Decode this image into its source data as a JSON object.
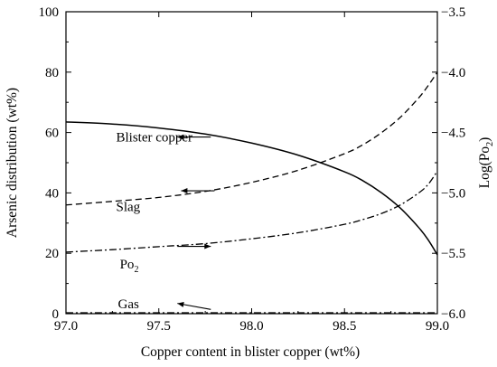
{
  "chart_data": {
    "type": "line",
    "title": "",
    "xlabel": "Copper content in blister copper (wt%)",
    "ylabel": "Arsenic distribution (wt%)",
    "y2label": {
      "prefix": "Log(Po",
      "sub": "2",
      "suffix": ")"
    },
    "xlim": [
      97.0,
      99.0
    ],
    "ylim": [
      0,
      100
    ],
    "y2lim": [
      -6.0,
      -3.5
    ],
    "xticks": [
      "97.0",
      "97.5",
      "98.0",
      "98.5",
      "99.0"
    ],
    "yticks": [
      "0",
      "20",
      "40",
      "60",
      "80",
      "100"
    ],
    "y2ticks": [
      "−6.0",
      "−5.5",
      "−5.0",
      "−4.5",
      "−4.0",
      "−3.5"
    ],
    "grid": false,
    "series": [
      {
        "name": "Blister copper",
        "axis": "left",
        "style": "solid",
        "x": [
          97.0,
          97.25,
          97.5,
          97.75,
          98.0,
          98.25,
          98.5,
          98.6,
          98.7,
          98.8,
          98.9,
          98.95,
          99.0
        ],
        "y": [
          63.5,
          62.8,
          61.5,
          59.5,
          56.5,
          52.5,
          47.0,
          44.0,
          40.0,
          35.0,
          28.5,
          24.5,
          19.5
        ]
      },
      {
        "name": "Slag",
        "axis": "left",
        "style": "dashed",
        "x": [
          97.0,
          97.25,
          97.5,
          97.75,
          98.0,
          98.25,
          98.5,
          98.6,
          98.7,
          98.8,
          98.9,
          98.95,
          99.0
        ],
        "y": [
          36.0,
          37.2,
          38.5,
          40.5,
          43.5,
          47.5,
          53.0,
          56.0,
          60.0,
          65.0,
          71.5,
          75.5,
          80.0
        ]
      },
      {
        "name": "Po2",
        "axis": "right",
        "style": "dash-dot",
        "x": [
          97.0,
          97.25,
          97.5,
          97.75,
          98.0,
          98.25,
          98.5,
          98.6,
          98.7,
          98.8,
          98.9,
          98.95,
          99.0
        ],
        "y": [
          -5.49,
          -5.47,
          -5.445,
          -5.42,
          -5.38,
          -5.33,
          -5.26,
          -5.22,
          -5.17,
          -5.1,
          -5.0,
          -4.93,
          -4.82
        ]
      },
      {
        "name": "Gas",
        "axis": "left",
        "style": "dash-dot",
        "x": [
          97.0,
          97.5,
          98.0,
          98.5,
          99.0
        ],
        "y": [
          0.2,
          0.2,
          0.2,
          0.2,
          0.2
        ]
      }
    ],
    "annotations": [
      {
        "id": "blister",
        "text": "Blister copper",
        "sub": "",
        "x": 97.27,
        "y": 58.5,
        "arrow_to": "left",
        "arrow_from": [
          97.78,
          58.5
        ],
        "arrow_tip": [
          97.6,
          58.5
        ]
      },
      {
        "id": "slag",
        "text": "Slag",
        "sub": "",
        "x": 97.27,
        "y": 35.5,
        "arrow_to": "left",
        "arrow_from": [
          97.8,
          40.7
        ],
        "arrow_tip": [
          97.62,
          40.7
        ]
      },
      {
        "id": "po2",
        "text": "Po",
        "sub": "2",
        "x": 97.29,
        "y": 16.5,
        "arrow_to": "right",
        "arrow_from": [
          97.6,
          22.3
        ],
        "arrow_tip": [
          97.78,
          22.3
        ]
      },
      {
        "id": "gas",
        "text": "Gas",
        "sub": "",
        "x": 97.28,
        "y": 3.3,
        "arrow_to": "left",
        "arrow_from": [
          97.78,
          1.4
        ],
        "arrow_tip": [
          97.6,
          3.4
        ]
      }
    ]
  }
}
